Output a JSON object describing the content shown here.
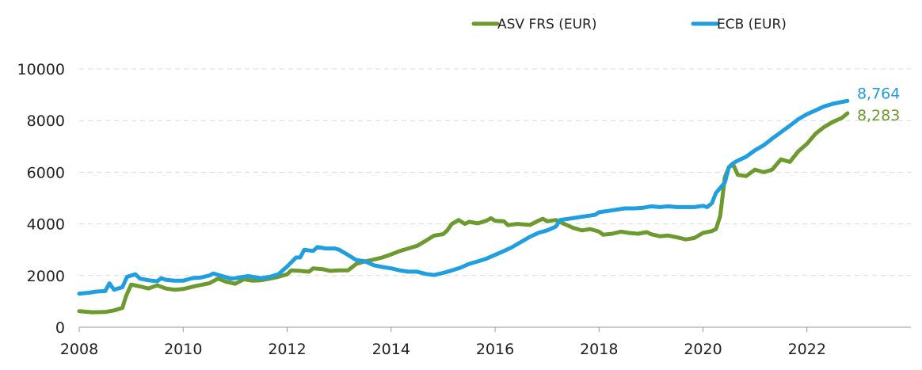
{
  "chart_data": {
    "type": "line",
    "title": "",
    "xlabel": "",
    "ylabel": "",
    "xlim": [
      2008,
      2024
    ],
    "ylim": [
      0,
      10000
    ],
    "x_ticks": [
      "2008",
      "2010",
      "2012",
      "2014",
      "2016",
      "2018",
      "2020",
      "2022"
    ],
    "y_ticks": [
      "0",
      "2000",
      "4000",
      "6000",
      "8000",
      "10000"
    ],
    "grid": "horizontal dashed",
    "legend_position": "top",
    "series": [
      {
        "name": "ASV FRS (EUR)",
        "color": "#6c9a2e",
        "end_label": "8,283",
        "points": [
          [
            2008.0,
            620
          ],
          [
            2008.25,
            580
          ],
          [
            2008.5,
            590
          ],
          [
            2008.67,
            650
          ],
          [
            2008.83,
            750
          ],
          [
            2008.9,
            1200
          ],
          [
            2009.0,
            1650
          ],
          [
            2009.17,
            1580
          ],
          [
            2009.33,
            1500
          ],
          [
            2009.5,
            1620
          ],
          [
            2009.67,
            1500
          ],
          [
            2009.83,
            1450
          ],
          [
            2010.0,
            1480
          ],
          [
            2010.25,
            1600
          ],
          [
            2010.5,
            1700
          ],
          [
            2010.67,
            1880
          ],
          [
            2010.83,
            1760
          ],
          [
            2011.0,
            1680
          ],
          [
            2011.17,
            1860
          ],
          [
            2011.33,
            1800
          ],
          [
            2011.5,
            1820
          ],
          [
            2011.67,
            1880
          ],
          [
            2011.83,
            1950
          ],
          [
            2012.0,
            2050
          ],
          [
            2012.08,
            2200
          ],
          [
            2012.25,
            2180
          ],
          [
            2012.42,
            2150
          ],
          [
            2012.5,
            2280
          ],
          [
            2012.67,
            2250
          ],
          [
            2012.83,
            2180
          ],
          [
            2013.0,
            2200
          ],
          [
            2013.17,
            2200
          ],
          [
            2013.33,
            2450
          ],
          [
            2013.5,
            2550
          ],
          [
            2013.67,
            2620
          ],
          [
            2013.83,
            2700
          ],
          [
            2014.0,
            2820
          ],
          [
            2014.17,
            2950
          ],
          [
            2014.33,
            3050
          ],
          [
            2014.5,
            3150
          ],
          [
            2014.67,
            3350
          ],
          [
            2014.83,
            3550
          ],
          [
            2015.0,
            3600
          ],
          [
            2015.08,
            3750
          ],
          [
            2015.17,
            4000
          ],
          [
            2015.3,
            4150
          ],
          [
            2015.42,
            4000
          ],
          [
            2015.5,
            4080
          ],
          [
            2015.67,
            4020
          ],
          [
            2015.83,
            4120
          ],
          [
            2015.92,
            4220
          ],
          [
            2016.0,
            4120
          ],
          [
            2016.17,
            4100
          ],
          [
            2016.25,
            3950
          ],
          [
            2016.42,
            4000
          ],
          [
            2016.67,
            3960
          ],
          [
            2016.83,
            4120
          ],
          [
            2016.92,
            4200
          ],
          [
            2017.0,
            4100
          ],
          [
            2017.17,
            4150
          ],
          [
            2017.33,
            4000
          ],
          [
            2017.5,
            3850
          ],
          [
            2017.67,
            3750
          ],
          [
            2017.83,
            3800
          ],
          [
            2018.0,
            3700
          ],
          [
            2018.08,
            3580
          ],
          [
            2018.25,
            3620
          ],
          [
            2018.42,
            3700
          ],
          [
            2018.58,
            3650
          ],
          [
            2018.75,
            3620
          ],
          [
            2018.92,
            3680
          ],
          [
            2019.0,
            3600
          ],
          [
            2019.17,
            3520
          ],
          [
            2019.33,
            3550
          ],
          [
            2019.5,
            3480
          ],
          [
            2019.67,
            3400
          ],
          [
            2019.83,
            3450
          ],
          [
            2020.0,
            3650
          ],
          [
            2020.17,
            3720
          ],
          [
            2020.25,
            3800
          ],
          [
            2020.33,
            4300
          ],
          [
            2020.42,
            5800
          ],
          [
            2020.5,
            6200
          ],
          [
            2020.58,
            6300
          ],
          [
            2020.67,
            5900
          ],
          [
            2020.83,
            5850
          ],
          [
            2021.0,
            6100
          ],
          [
            2021.17,
            6000
          ],
          [
            2021.33,
            6100
          ],
          [
            2021.5,
            6500
          ],
          [
            2021.67,
            6400
          ],
          [
            2021.83,
            6800
          ],
          [
            2022.0,
            7100
          ],
          [
            2022.17,
            7500
          ],
          [
            2022.33,
            7750
          ],
          [
            2022.5,
            7950
          ],
          [
            2022.67,
            8100
          ],
          [
            2022.78,
            8283
          ]
        ]
      },
      {
        "name": "ECB (EUR)",
        "color": "#1f9ee0",
        "end_label": "8,764",
        "points": [
          [
            2008.0,
            1300
          ],
          [
            2008.17,
            1330
          ],
          [
            2008.33,
            1380
          ],
          [
            2008.5,
            1400
          ],
          [
            2008.58,
            1700
          ],
          [
            2008.67,
            1450
          ],
          [
            2008.83,
            1550
          ],
          [
            2008.92,
            1950
          ],
          [
            2009.0,
            2000
          ],
          [
            2009.08,
            2050
          ],
          [
            2009.17,
            1880
          ],
          [
            2009.33,
            1820
          ],
          [
            2009.5,
            1780
          ],
          [
            2009.58,
            1900
          ],
          [
            2009.67,
            1830
          ],
          [
            2009.83,
            1800
          ],
          [
            2010.0,
            1800
          ],
          [
            2010.17,
            1900
          ],
          [
            2010.33,
            1920
          ],
          [
            2010.5,
            2000
          ],
          [
            2010.58,
            2080
          ],
          [
            2010.75,
            1980
          ],
          [
            2010.92,
            1880
          ],
          [
            2011.0,
            1900
          ],
          [
            2011.25,
            1980
          ],
          [
            2011.5,
            1900
          ],
          [
            2011.67,
            1950
          ],
          [
            2011.83,
            2050
          ],
          [
            2012.0,
            2350
          ],
          [
            2012.17,
            2700
          ],
          [
            2012.25,
            2700
          ],
          [
            2012.33,
            3000
          ],
          [
            2012.5,
            2950
          ],
          [
            2012.58,
            3100
          ],
          [
            2012.75,
            3050
          ],
          [
            2012.92,
            3050
          ],
          [
            2013.0,
            3000
          ],
          [
            2013.17,
            2800
          ],
          [
            2013.33,
            2600
          ],
          [
            2013.5,
            2550
          ],
          [
            2013.67,
            2400
          ],
          [
            2013.83,
            2330
          ],
          [
            2014.0,
            2280
          ],
          [
            2014.17,
            2200
          ],
          [
            2014.33,
            2150
          ],
          [
            2014.5,
            2150
          ],
          [
            2014.67,
            2060
          ],
          [
            2014.83,
            2020
          ],
          [
            2015.0,
            2100
          ],
          [
            2015.17,
            2200
          ],
          [
            2015.33,
            2300
          ],
          [
            2015.5,
            2450
          ],
          [
            2015.67,
            2550
          ],
          [
            2015.83,
            2650
          ],
          [
            2016.0,
            2800
          ],
          [
            2016.17,
            2950
          ],
          [
            2016.33,
            3100
          ],
          [
            2016.5,
            3300
          ],
          [
            2016.67,
            3500
          ],
          [
            2016.83,
            3650
          ],
          [
            2017.0,
            3750
          ],
          [
            2017.17,
            3900
          ],
          [
            2017.25,
            4150
          ],
          [
            2017.42,
            4200
          ],
          [
            2017.58,
            4250
          ],
          [
            2017.75,
            4300
          ],
          [
            2017.92,
            4350
          ],
          [
            2018.0,
            4450
          ],
          [
            2018.17,
            4500
          ],
          [
            2018.33,
            4550
          ],
          [
            2018.5,
            4600
          ],
          [
            2018.67,
            4600
          ],
          [
            2018.83,
            4620
          ],
          [
            2019.0,
            4680
          ],
          [
            2019.17,
            4650
          ],
          [
            2019.33,
            4680
          ],
          [
            2019.5,
            4650
          ],
          [
            2019.67,
            4650
          ],
          [
            2019.83,
            4650
          ],
          [
            2020.0,
            4700
          ],
          [
            2020.08,
            4650
          ],
          [
            2020.17,
            4800
          ],
          [
            2020.25,
            5200
          ],
          [
            2020.42,
            5600
          ],
          [
            2020.5,
            6200
          ],
          [
            2020.58,
            6350
          ],
          [
            2020.67,
            6450
          ],
          [
            2020.83,
            6600
          ],
          [
            2021.0,
            6850
          ],
          [
            2021.17,
            7050
          ],
          [
            2021.33,
            7300
          ],
          [
            2021.5,
            7550
          ],
          [
            2021.67,
            7800
          ],
          [
            2021.83,
            8050
          ],
          [
            2022.0,
            8250
          ],
          [
            2022.17,
            8400
          ],
          [
            2022.33,
            8550
          ],
          [
            2022.5,
            8650
          ],
          [
            2022.67,
            8720
          ],
          [
            2022.78,
            8764
          ]
        ]
      }
    ]
  }
}
